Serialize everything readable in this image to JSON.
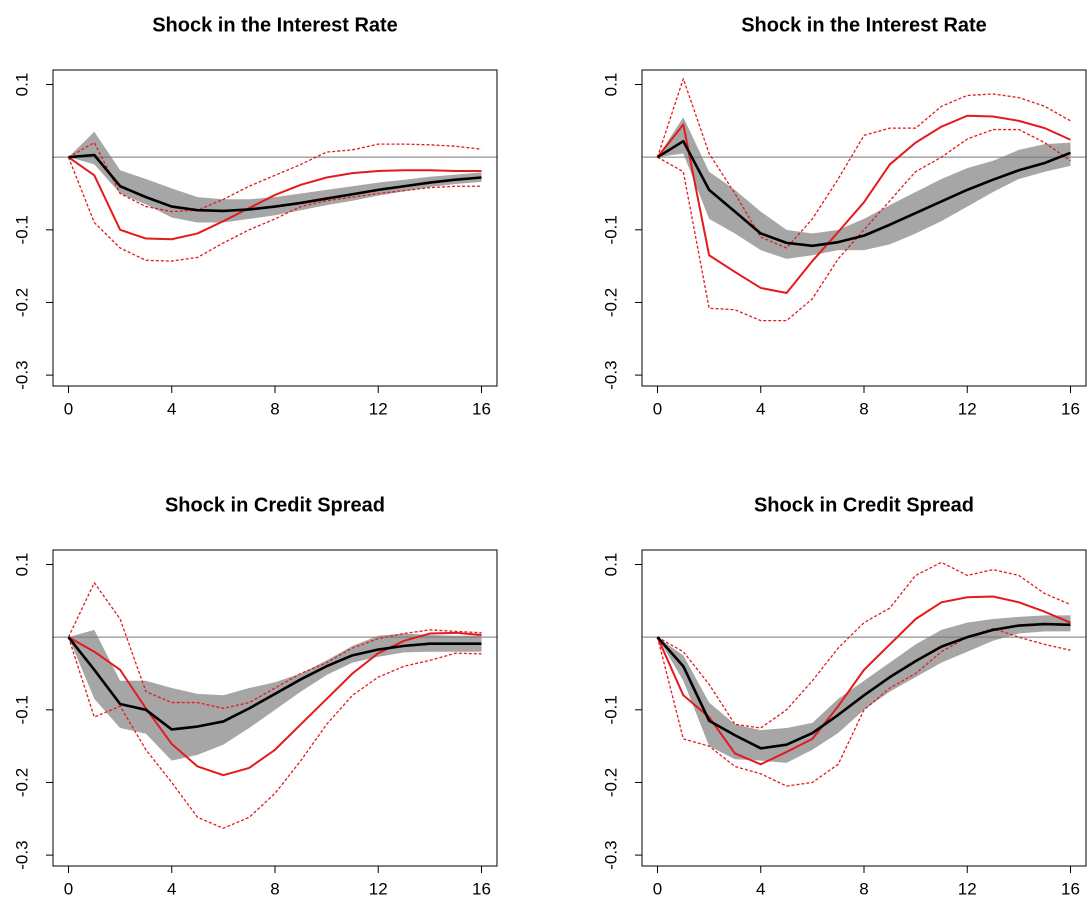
{
  "chart_data": [
    {
      "type": "line",
      "title": "Shock in the Interest Rate",
      "x": [
        0,
        1,
        2,
        3,
        4,
        5,
        6,
        7,
        8,
        9,
        10,
        11,
        12,
        13,
        14,
        15,
        16
      ],
      "xlim": [
        -0.6,
        16.6
      ],
      "ylim": [
        -0.315,
        0.12
      ],
      "xticks": [
        0,
        4,
        8,
        12,
        16
      ],
      "yticks": [
        -0.3,
        -0.2,
        -0.1,
        0.1
      ],
      "hline": 0,
      "band": {
        "color": "#a6a6a6",
        "lower": [
          0,
          -0.01,
          -0.05,
          -0.065,
          -0.083,
          -0.09,
          -0.09,
          -0.085,
          -0.08,
          -0.073,
          -0.066,
          -0.06,
          -0.053,
          -0.047,
          -0.041,
          -0.037,
          -0.034
        ],
        "upper": [
          0,
          0.035,
          -0.018,
          -0.03,
          -0.043,
          -0.055,
          -0.058,
          -0.058,
          -0.055,
          -0.05,
          -0.045,
          -0.04,
          -0.035,
          -0.031,
          -0.027,
          -0.024,
          -0.021
        ]
      },
      "series": [
        {
          "color": "#e41a1c",
          "style": "dotted",
          "values": [
            0,
            0.02,
            -0.05,
            -0.068,
            -0.075,
            -0.073,
            -0.058,
            -0.04,
            -0.025,
            -0.01,
            0.007,
            0.01,
            0.018,
            0.018,
            0.017,
            0.015,
            0.011
          ]
        },
        {
          "color": "#e41a1c",
          "style": "dotted",
          "values": [
            0,
            -0.09,
            -0.125,
            -0.142,
            -0.143,
            -0.138,
            -0.118,
            -0.1,
            -0.085,
            -0.068,
            -0.06,
            -0.055,
            -0.05,
            -0.046,
            -0.042,
            -0.04,
            -0.04
          ]
        },
        {
          "color": "#e41a1c",
          "style": "solid",
          "values": [
            0,
            -0.025,
            -0.1,
            -0.112,
            -0.113,
            -0.105,
            -0.088,
            -0.07,
            -0.052,
            -0.038,
            -0.028,
            -0.022,
            -0.019,
            -0.018,
            -0.018,
            -0.019,
            -0.019
          ]
        },
        {
          "color": "#000000",
          "style": "thick",
          "values": [
            0,
            0.003,
            -0.04,
            -0.055,
            -0.068,
            -0.073,
            -0.074,
            -0.072,
            -0.068,
            -0.063,
            -0.057,
            -0.051,
            -0.045,
            -0.04,
            -0.035,
            -0.031,
            -0.028
          ]
        }
      ]
    },
    {
      "type": "line",
      "title": "Shock in the Interest Rate",
      "x": [
        0,
        1,
        2,
        3,
        4,
        5,
        6,
        7,
        8,
        9,
        10,
        11,
        12,
        13,
        14,
        15,
        16
      ],
      "xlim": [
        -0.6,
        16.6
      ],
      "ylim": [
        -0.315,
        0.12
      ],
      "xticks": [
        0,
        4,
        8,
        12,
        16
      ],
      "yticks": [
        -0.3,
        -0.2,
        -0.1,
        0.1
      ],
      "hline": 0,
      "band": {
        "color": "#a6a6a6",
        "lower": [
          0,
          0.005,
          -0.085,
          -0.105,
          -0.128,
          -0.14,
          -0.135,
          -0.128,
          -0.128,
          -0.12,
          -0.105,
          -0.088,
          -0.068,
          -0.048,
          -0.03,
          -0.02,
          -0.012
        ],
        "upper": [
          0,
          0.055,
          -0.02,
          -0.045,
          -0.075,
          -0.1,
          -0.105,
          -0.1,
          -0.085,
          -0.066,
          -0.048,
          -0.03,
          -0.015,
          -0.005,
          0.01,
          0.018,
          0.02
        ]
      },
      "series": [
        {
          "color": "#e41a1c",
          "style": "dotted",
          "values": [
            0,
            0.108,
            0.005,
            -0.05,
            -0.11,
            -0.125,
            -0.085,
            -0.03,
            0.03,
            0.04,
            0.04,
            0.07,
            0.085,
            0.087,
            0.082,
            0.07,
            0.05
          ]
        },
        {
          "color": "#e41a1c",
          "style": "dotted",
          "values": [
            0,
            -0.02,
            -0.208,
            -0.21,
            -0.225,
            -0.225,
            -0.195,
            -0.14,
            -0.1,
            -0.06,
            -0.02,
            0,
            0.025,
            0.038,
            0.038,
            0.02,
            -0.005
          ]
        },
        {
          "color": "#e41a1c",
          "style": "solid",
          "values": [
            0,
            0.045,
            -0.135,
            -0.158,
            -0.18,
            -0.187,
            -0.143,
            -0.103,
            -0.062,
            -0.01,
            0.02,
            0.042,
            0.057,
            0.056,
            0.05,
            0.04,
            0.024
          ]
        },
        {
          "color": "#000000",
          "style": "thick",
          "values": [
            0,
            0.022,
            -0.045,
            -0.075,
            -0.105,
            -0.118,
            -0.122,
            -0.117,
            -0.108,
            -0.093,
            -0.077,
            -0.061,
            -0.045,
            -0.031,
            -0.018,
            -0.008,
            0.006
          ]
        }
      ]
    },
    {
      "type": "line",
      "title": "Shock in Credit Spread",
      "x": [
        0,
        1,
        2,
        3,
        4,
        5,
        6,
        7,
        8,
        9,
        10,
        11,
        12,
        13,
        14,
        15,
        16
      ],
      "xlim": [
        -0.6,
        16.6
      ],
      "ylim": [
        -0.315,
        0.12
      ],
      "xticks": [
        0,
        4,
        8,
        12,
        16
      ],
      "yticks": [
        -0.3,
        -0.2,
        -0.1,
        0.1
      ],
      "hline": 0,
      "band": {
        "color": "#a6a6a6",
        "lower": [
          0,
          -0.085,
          -0.125,
          -0.133,
          -0.17,
          -0.162,
          -0.148,
          -0.125,
          -0.1,
          -0.075,
          -0.052,
          -0.035,
          -0.027,
          -0.021,
          -0.02,
          -0.02,
          -0.02
        ],
        "upper": [
          0,
          0.01,
          -0.06,
          -0.06,
          -0.07,
          -0.078,
          -0.08,
          -0.07,
          -0.062,
          -0.05,
          -0.032,
          -0.012,
          0.002,
          0.005,
          0.003,
          0.002,
          0.002
        ]
      },
      "series": [
        {
          "color": "#e41a1c",
          "style": "dotted",
          "values": [
            0,
            0.075,
            0.025,
            -0.075,
            -0.09,
            -0.09,
            -0.098,
            -0.09,
            -0.07,
            -0.05,
            -0.035,
            -0.015,
            -0.002,
            0.005,
            0.01,
            0.008,
            0.006
          ]
        },
        {
          "color": "#e41a1c",
          "style": "dotted",
          "values": [
            0,
            -0.11,
            -0.095,
            -0.155,
            -0.2,
            -0.248,
            -0.263,
            -0.248,
            -0.215,
            -0.17,
            -0.12,
            -0.08,
            -0.055,
            -0.04,
            -0.032,
            -0.022,
            -0.023
          ]
        },
        {
          "color": "#e41a1c",
          "style": "solid",
          "values": [
            0,
            -0.02,
            -0.045,
            -0.098,
            -0.147,
            -0.178,
            -0.19,
            -0.18,
            -0.155,
            -0.12,
            -0.085,
            -0.05,
            -0.022,
            -0.005,
            0.005,
            0.006,
            0.003
          ]
        },
        {
          "color": "#000000",
          "style": "thick",
          "values": [
            0,
            -0.045,
            -0.092,
            -0.1,
            -0.127,
            -0.123,
            -0.116,
            -0.098,
            -0.078,
            -0.058,
            -0.04,
            -0.025,
            -0.017,
            -0.012,
            -0.009,
            -0.009,
            -0.009
          ]
        }
      ]
    },
    {
      "type": "line",
      "title": "Shock in Credit Spread",
      "x": [
        0,
        1,
        2,
        3,
        4,
        5,
        6,
        7,
        8,
        9,
        10,
        11,
        12,
        13,
        14,
        15,
        16
      ],
      "xlim": [
        -0.6,
        16.6
      ],
      "ylim": [
        -0.315,
        0.12
      ],
      "xticks": [
        0,
        4,
        8,
        12,
        16
      ],
      "yticks": [
        -0.3,
        -0.2,
        -0.1,
        0.1
      ],
      "hline": 0,
      "band": {
        "color": "#a6a6a6",
        "lower": [
          0,
          -0.06,
          -0.15,
          -0.168,
          -0.17,
          -0.173,
          -0.155,
          -0.132,
          -0.1,
          -0.075,
          -0.055,
          -0.035,
          -0.02,
          -0.005,
          0.005,
          0.008,
          0.008
        ],
        "upper": [
          0,
          -0.025,
          -0.09,
          -0.12,
          -0.128,
          -0.125,
          -0.118,
          -0.085,
          -0.06,
          -0.035,
          -0.01,
          0.01,
          0.02,
          0.025,
          0.028,
          0.03,
          0.03
        ]
      },
      "series": [
        {
          "color": "#e41a1c",
          "style": "dotted",
          "values": [
            0,
            -0.02,
            -0.065,
            -0.12,
            -0.125,
            -0.1,
            -0.06,
            -0.015,
            0.02,
            0.04,
            0.085,
            0.103,
            0.085,
            0.093,
            0.085,
            0.06,
            0.045
          ]
        },
        {
          "color": "#e41a1c",
          "style": "dotted",
          "values": [
            0,
            -0.14,
            -0.15,
            -0.178,
            -0.188,
            -0.205,
            -0.2,
            -0.175,
            -0.1,
            -0.07,
            -0.05,
            -0.02,
            0,
            0.012,
            0,
            -0.01,
            -0.018
          ]
        },
        {
          "color": "#e41a1c",
          "style": "solid",
          "values": [
            0,
            -0.08,
            -0.11,
            -0.16,
            -0.175,
            -0.158,
            -0.14,
            -0.095,
            -0.045,
            -0.01,
            0.025,
            0.048,
            0.055,
            0.056,
            0.048,
            0.035,
            0.02
          ]
        },
        {
          "color": "#000000",
          "style": "thick",
          "values": [
            0,
            -0.04,
            -0.115,
            -0.135,
            -0.153,
            -0.148,
            -0.132,
            -0.107,
            -0.08,
            -0.055,
            -0.033,
            -0.013,
            0,
            0.01,
            0.016,
            0.018,
            0.017
          ]
        }
      ]
    }
  ]
}
